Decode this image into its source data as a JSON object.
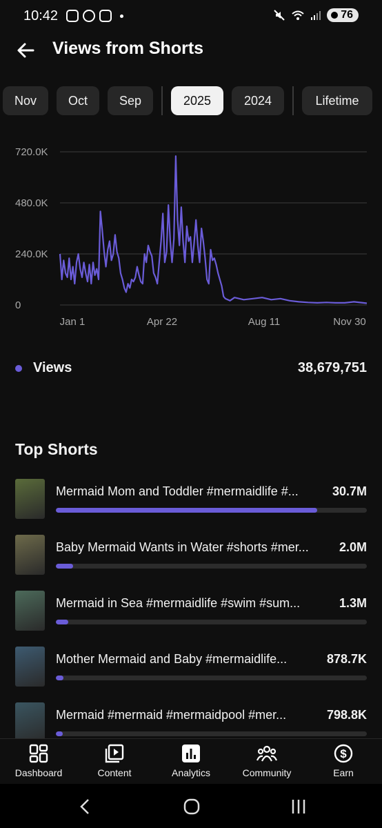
{
  "status_bar": {
    "time": "10:42",
    "battery": "76"
  },
  "header": {
    "title": "Views from Shorts",
    "back_icon": "arrow-left-icon"
  },
  "chips": [
    {
      "label": "Nov",
      "active": false
    },
    {
      "label": "Oct",
      "active": false
    },
    {
      "label": "Sep",
      "active": false
    },
    {
      "label": "2025",
      "active": true
    },
    {
      "label": "2024",
      "active": false
    },
    {
      "label": "Lifetime",
      "active": false
    }
  ],
  "chart_data": {
    "type": "line",
    "x_tick_labels": [
      "Jan 1",
      "Apr 22",
      "Aug 11",
      "Nov 30"
    ],
    "y_tick_labels": [
      "0",
      "240.0K",
      "480.0K",
      "720.0K"
    ],
    "ylim": [
      0,
      720000
    ],
    "grid": true,
    "color": "#6a5cd8",
    "series": [
      {
        "name": "Views",
        "x_days": [
          0,
          2,
          4,
          6,
          8,
          10,
          12,
          14,
          16,
          18,
          20,
          22,
          24,
          26,
          28,
          30,
          32,
          34,
          36,
          38,
          40,
          42,
          44,
          46,
          48,
          50,
          52,
          54,
          56,
          58,
          60,
          62,
          64,
          66,
          68,
          70,
          72,
          74,
          76,
          78,
          80,
          82,
          84,
          86,
          88,
          90,
          92,
          94,
          96,
          98,
          100,
          102,
          104,
          106,
          108,
          110,
          112,
          114,
          116,
          118,
          120,
          122,
          124,
          126,
          128,
          130,
          132,
          134,
          136,
          138,
          140,
          142,
          144,
          146,
          148,
          150,
          152,
          154,
          156,
          158,
          160,
          162,
          164,
          166,
          168,
          170,
          172,
          174,
          176,
          178,
          180,
          185,
          190,
          200,
          210,
          220,
          230,
          240,
          250,
          260,
          270,
          280,
          290,
          300,
          310,
          320,
          330,
          334
        ],
        "values": [
          240000,
          120000,
          210000,
          150000,
          130000,
          220000,
          120000,
          180000,
          100000,
          200000,
          240000,
          170000,
          130000,
          200000,
          150000,
          110000,
          190000,
          100000,
          200000,
          140000,
          170000,
          120000,
          440000,
          350000,
          250000,
          180000,
          260000,
          300000,
          210000,
          240000,
          330000,
          250000,
          220000,
          150000,
          120000,
          80000,
          60000,
          100000,
          80000,
          120000,
          110000,
          130000,
          180000,
          140000,
          110000,
          100000,
          240000,
          200000,
          280000,
          250000,
          230000,
          150000,
          130000,
          100000,
          200000,
          300000,
          430000,
          200000,
          250000,
          470000,
          300000,
          200000,
          310000,
          700000,
          400000,
          280000,
          460000,
          300000,
          200000,
          370000,
          300000,
          320000,
          200000,
          290000,
          400000,
          280000,
          200000,
          360000,
          300000,
          220000,
          120000,
          100000,
          260000,
          210000,
          220000,
          190000,
          150000,
          120000,
          90000,
          40000,
          30000,
          20000,
          35000,
          25000,
          30000,
          35000,
          25000,
          30000,
          20000,
          15000,
          12000,
          10000,
          12000,
          10000,
          10000,
          15000,
          10000,
          8000
        ]
      }
    ]
  },
  "legend": {
    "label": "Views",
    "total": "38,679,751",
    "dot_color": "#6a5cd8"
  },
  "top_shorts": {
    "title": "Top Shorts",
    "items": [
      {
        "title": "Mermaid Mom and Toddler #mermaidlife #...",
        "count": "30.7M",
        "share": 0.84,
        "thumb": "#5a6b3a"
      },
      {
        "title": "Baby Mermaid Wants in Water #shorts #mer...",
        "count": "2.0M",
        "share": 0.055,
        "thumb": "#6d6a4a"
      },
      {
        "title": "Mermaid in Sea #mermaidlife #swim #sum...",
        "count": "1.3M",
        "share": 0.04,
        "thumb": "#4c6a5a"
      },
      {
        "title": "Mother Mermaid and Baby #mermaidlife...",
        "count": "878.7K",
        "share": 0.025,
        "thumb": "#3d5a70"
      },
      {
        "title": "Mermaid #mermaid #mermaidpool #mer...",
        "count": "798.8K",
        "share": 0.022,
        "thumb": "#3a5560"
      }
    ]
  },
  "bottom_nav": [
    {
      "label": "Dashboard",
      "icon": "dashboard-icon"
    },
    {
      "label": "Content",
      "icon": "content-icon"
    },
    {
      "label": "Analytics",
      "icon": "analytics-icon"
    },
    {
      "label": "Community",
      "icon": "community-icon"
    },
    {
      "label": "Earn",
      "icon": "earn-icon"
    }
  ]
}
